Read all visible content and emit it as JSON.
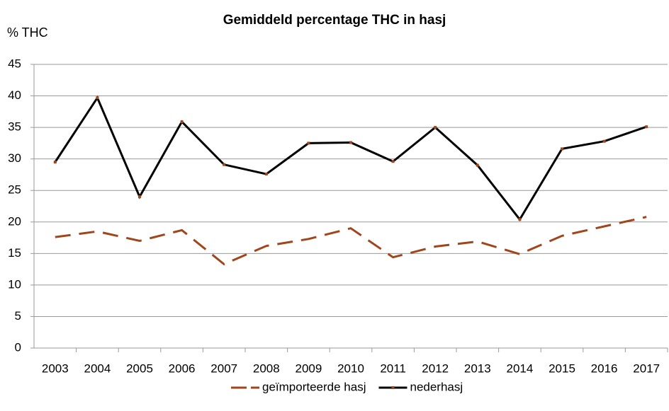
{
  "chart_data": {
    "type": "line",
    "title": "Gemiddeld percentage THC in hasj",
    "y_label": "% THC",
    "categories": [
      "2003",
      "2004",
      "2005",
      "2006",
      "2007",
      "2008",
      "2009",
      "2010",
      "2011",
      "2012",
      "2013",
      "2014",
      "2015",
      "2016",
      "2017"
    ],
    "series": [
      {
        "name": "geïmporteerde hasj",
        "color": "#a0461c",
        "dashed": true,
        "values": [
          17.6,
          18.5,
          17.0,
          18.7,
          13.3,
          16.2,
          17.3,
          19.0,
          14.4,
          16.1,
          16.9,
          14.9,
          17.8,
          19.3,
          20.8
        ]
      },
      {
        "name": "nederhasj",
        "color": "#000000",
        "marker_color": "#a0461c",
        "dashed": false,
        "values": [
          29.5,
          39.7,
          24.0,
          35.9,
          29.1,
          27.6,
          32.5,
          32.6,
          29.6,
          35.0,
          29.0,
          20.4,
          31.6,
          32.8,
          35.1
        ]
      }
    ],
    "ylim": [
      0,
      45
    ],
    "yticks": [
      0,
      5,
      10,
      15,
      20,
      25,
      30,
      35,
      40,
      45
    ],
    "grid": true,
    "legend": "bottom"
  }
}
